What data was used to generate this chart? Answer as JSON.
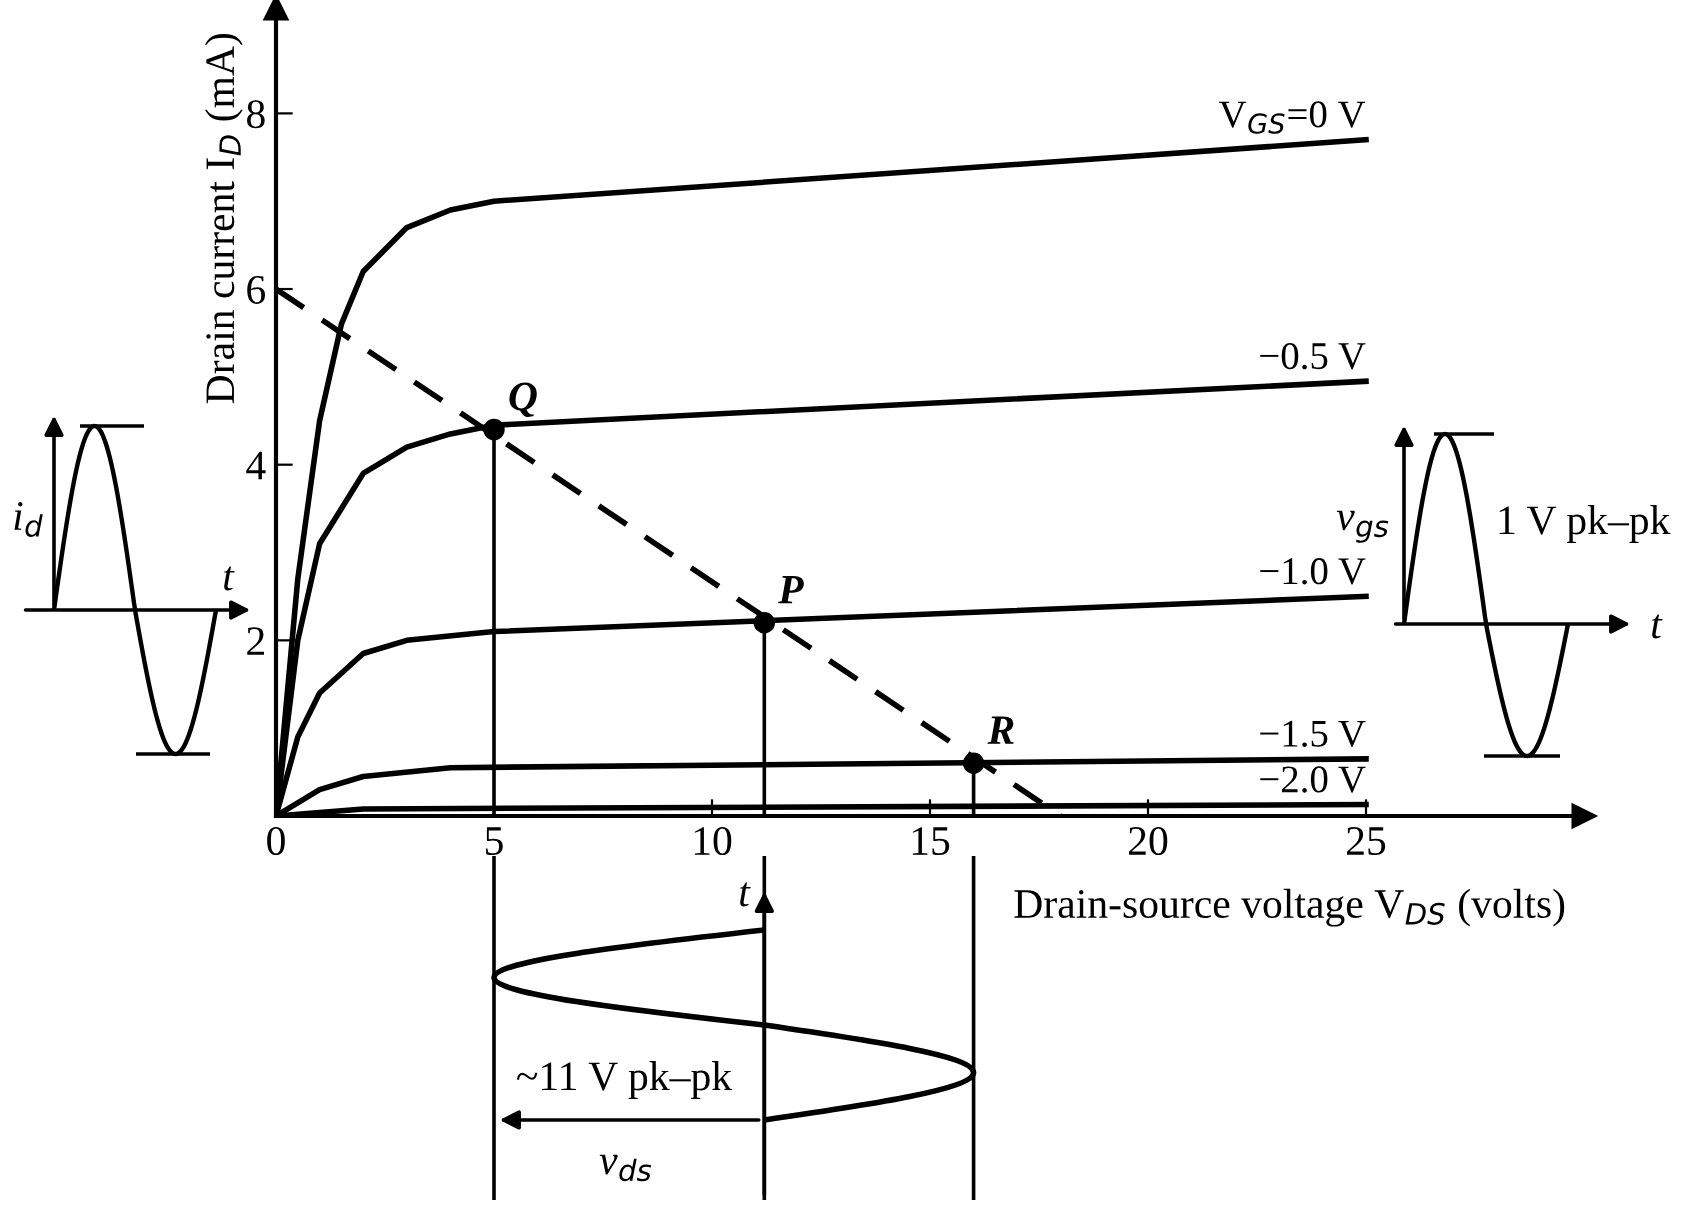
{
  "chart_data": {
    "type": "line",
    "xlabel": "Drain-source voltage V$_{DS}$ (volts)",
    "ylabel": "Drain current I$_{D}$ (mA)",
    "xlim": [
      0,
      30
    ],
    "ylim": [
      0,
      9.2
    ],
    "xticks": [
      0,
      5,
      10,
      15,
      20,
      25
    ],
    "yticks": [
      2,
      4,
      6,
      8
    ],
    "grid": false,
    "legend": false,
    "marker": "none",
    "line_style": "solid",
    "series": [
      {
        "name": "V$_{GS}$=0 V",
        "color": "#000000",
        "x": [
          0,
          0.5,
          1,
          1.5,
          2,
          3,
          4,
          5,
          25
        ],
        "values": [
          0,
          2.7,
          4.5,
          5.6,
          6.2,
          6.7,
          6.9,
          7.0,
          7.7
        ]
      },
      {
        "name": "−0.5 V",
        "color": "#000000",
        "x": [
          0,
          0.5,
          1,
          2,
          3,
          4,
          5,
          25
        ],
        "values": [
          0,
          2.0,
          3.1,
          3.9,
          4.2,
          4.35,
          4.45,
          4.95
        ]
      },
      {
        "name": "−1.0 V",
        "color": "#000000",
        "x": [
          0,
          0.5,
          1,
          2,
          3,
          5,
          25
        ],
        "values": [
          0,
          0.9,
          1.4,
          1.85,
          2.0,
          2.1,
          2.5
        ]
      },
      {
        "name": "−1.5 V",
        "color": "#000000",
        "x": [
          0,
          1,
          2,
          4,
          25
        ],
        "values": [
          0,
          0.3,
          0.45,
          0.55,
          0.65
        ]
      },
      {
        "name": "−2.0 V",
        "color": "#000000",
        "x": [
          0,
          2,
          25
        ],
        "values": [
          0,
          0.08,
          0.13
        ]
      },
      {
        "type": "line",
        "line_style": "dashed",
        "color": "#000000",
        "x": [
          0,
          18
        ],
        "values": [
          6,
          0
        ]
      },
      {
        "type": "scatter",
        "marker": "circle",
        "color": "#000000",
        "x": [
          5,
          11.2,
          16
        ],
        "values": [
          4.4,
          2.2,
          0.6
        ]
      }
    ],
    "annotations": [
      {
        "text": "Q",
        "x": 5,
        "y": 4.4
      },
      {
        "text": "P",
        "x": 11.2,
        "y": 2.2
      },
      {
        "text": "R",
        "x": 16,
        "y": 0.6
      },
      "i$_{d}$",
      "t",
      "v$_{gs}$",
      "1 V pk–pk",
      "t",
      "t",
      "~11 V pk–pk",
      "v$_{ds}$"
    ]
  }
}
